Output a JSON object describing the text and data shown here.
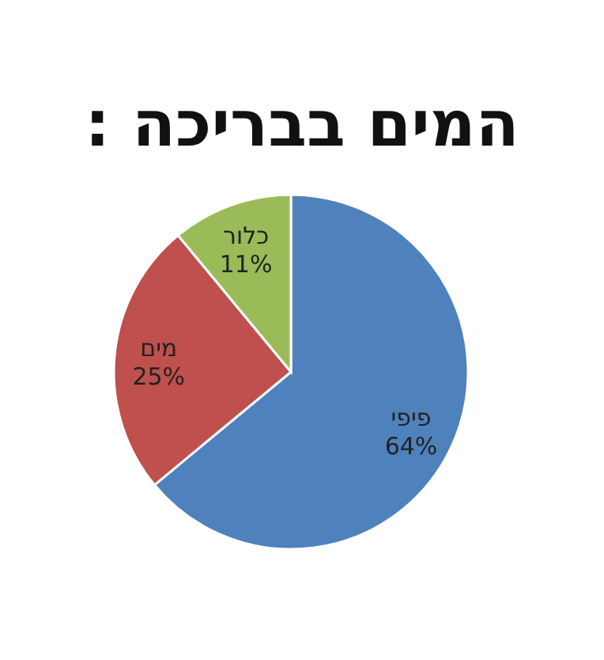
{
  "chart_data": {
    "type": "pie",
    "title": "המים בבריכה :",
    "categories": [
      "פיפי",
      "מים",
      "כלור"
    ],
    "values": [
      64,
      25,
      11
    ],
    "colors": [
      "#4f81bd",
      "#c0504d",
      "#9bbb59"
    ],
    "value_labels": [
      "64%",
      "25%",
      "11%"
    ]
  }
}
